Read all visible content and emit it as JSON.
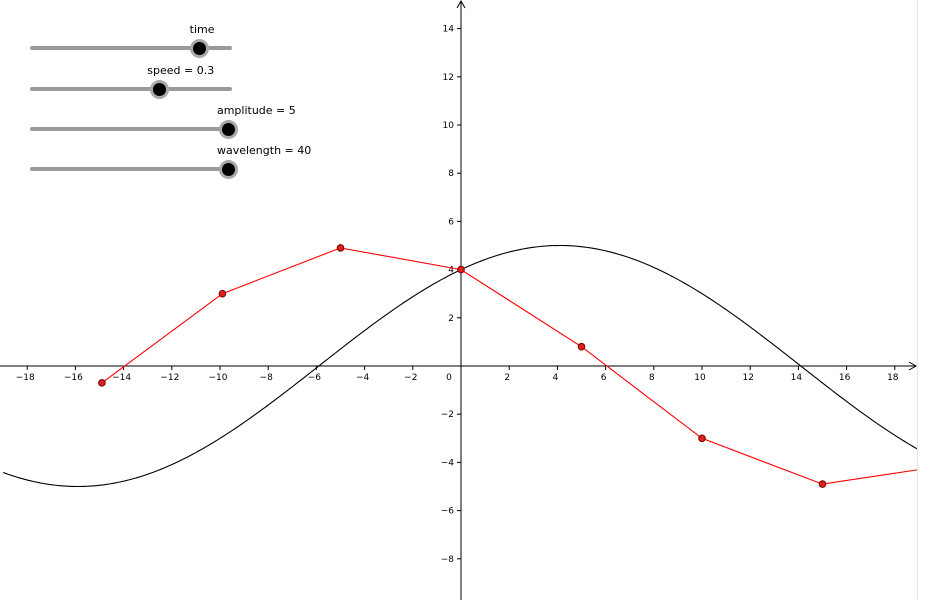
{
  "sliders": [
    {
      "id": "time",
      "label": "time",
      "fraction": 0.84
    },
    {
      "id": "speed",
      "label": "speed = 0.3",
      "fraction": 0.64
    },
    {
      "id": "amplitude",
      "label": "amplitude = 5",
      "fraction": 0.985
    },
    {
      "id": "wavelength",
      "label": "wavelength = 40",
      "fraction": 0.985
    }
  ],
  "chart_data": {
    "type": "line",
    "xlim": [
      -19,
      19
    ],
    "ylim": [
      -9.5,
      15
    ],
    "x_ticks": [
      -18,
      -16,
      -14,
      -12,
      -10,
      -8,
      -6,
      -4,
      -2,
      0,
      2,
      4,
      6,
      8,
      10,
      12,
      14,
      16,
      18
    ],
    "y_ticks": [
      -8,
      -6,
      -4,
      -2,
      2,
      4,
      6,
      8,
      10,
      12,
      14
    ],
    "grid": false,
    "colors": {
      "curve": "#000000",
      "polyline": "#ff0000",
      "point_fill": "#dd1f1f",
      "point_stroke": "#7a0000",
      "axis": "#000000"
    },
    "series": [
      {
        "type": "function",
        "amplitude": 5,
        "wavelength": 40,
        "phase_degrees": 53.1,
        "x_range": [
          -19,
          19
        ]
      },
      {
        "type": "polyline_points",
        "points": [
          [
            -14.9,
            -0.7
          ],
          [
            -9.9,
            3.0
          ],
          [
            -5.0,
            4.9
          ],
          [
            0,
            4.0
          ],
          [
            5.0,
            0.8
          ],
          [
            10.0,
            -3.0
          ],
          [
            15.0,
            -4.9
          ],
          [
            19.0,
            -4.3
          ]
        ]
      }
    ]
  }
}
